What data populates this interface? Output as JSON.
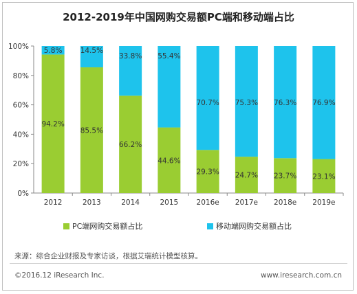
{
  "title": "2012-2019年中国网购交易额PC端和移动端占比",
  "chart_data": {
    "type": "bar",
    "stacked": true,
    "percent_stacked": true,
    "categories": [
      "2012",
      "2013",
      "2014",
      "2015",
      "2016e",
      "2017e",
      "2018e",
      "2019e"
    ],
    "series": [
      {
        "name": "PC端网购交易额占比",
        "color": "#9acd32",
        "values": [
          94.2,
          85.5,
          66.2,
          44.6,
          29.3,
          24.7,
          23.7,
          23.1
        ],
        "labels": [
          "94.2%",
          "85.5%",
          "66.2%",
          "44.6%",
          "29.3%",
          "24.7%",
          "23.7%",
          "23.1%"
        ]
      },
      {
        "name": "移动端网购交易额占比",
        "color": "#1ec3ec",
        "values": [
          5.8,
          14.5,
          33.8,
          55.4,
          70.7,
          75.3,
          76.3,
          76.9
        ],
        "labels": [
          "5.8%",
          "14.5%",
          "33.8%",
          "55.4%",
          "70.7%",
          "75.3%",
          "76.3%",
          "76.9%"
        ]
      }
    ],
    "ylim": [
      0,
      100
    ],
    "yticks": [
      "0%",
      "20%",
      "40%",
      "60%",
      "80%",
      "100%"
    ],
    "legend_position": "bottom"
  },
  "footer": {
    "source": "来源：综合企业财报及专家访谈，根据艾瑞统计模型核算。",
    "copyright": "©2016.12 iResearch Inc.",
    "website": "www.iresearch.com.cn"
  }
}
